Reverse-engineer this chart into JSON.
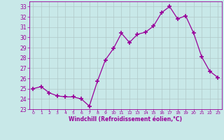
{
  "x": [
    0,
    1,
    2,
    3,
    4,
    5,
    6,
    7,
    8,
    9,
    10,
    11,
    12,
    13,
    14,
    15,
    16,
    17,
    18,
    19,
    20,
    21,
    22,
    23
  ],
  "y": [
    25.0,
    25.2,
    24.6,
    24.3,
    24.2,
    24.2,
    24.0,
    23.3,
    25.7,
    27.8,
    28.9,
    30.4,
    29.5,
    30.3,
    30.5,
    31.1,
    32.4,
    33.0,
    31.8,
    32.1,
    30.4,
    28.1,
    26.7,
    26.1
  ],
  "line_color": "#990099",
  "marker": "+",
  "marker_color": "#990099",
  "bg_color": "#c8e8e8",
  "grid_color": "#b0c8c8",
  "xlabel": "Windchill (Refroidissement éolien,°C)",
  "xlabel_color": "#990099",
  "tick_color": "#990099",
  "ylim": [
    23,
    33.5
  ],
  "xlim": [
    -0.5,
    23.5
  ],
  "yticks": [
    23,
    24,
    25,
    26,
    27,
    28,
    29,
    30,
    31,
    32,
    33
  ],
  "xticks": [
    0,
    1,
    2,
    3,
    4,
    5,
    6,
    7,
    8,
    9,
    10,
    11,
    12,
    13,
    14,
    15,
    16,
    17,
    18,
    19,
    20,
    21,
    22,
    23
  ],
  "figsize": [
    3.2,
    2.0
  ],
  "dpi": 100
}
